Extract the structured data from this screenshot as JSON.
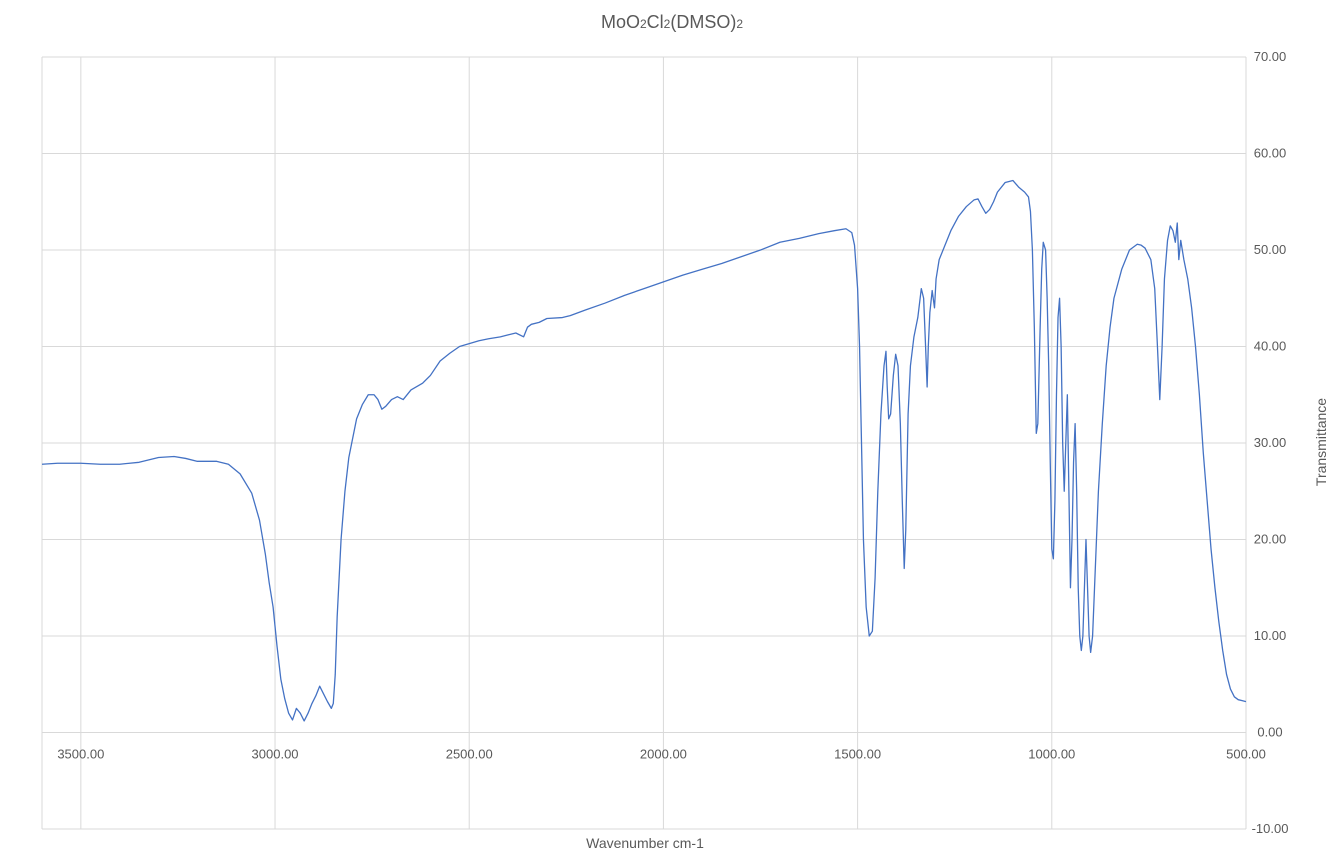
{
  "chart_data": {
    "type": "line",
    "title": {
      "parts": [
        {
          "text": "MoO",
          "sub": false
        },
        {
          "text": "2",
          "sub": true
        },
        {
          "text": "Cl",
          "sub": false
        },
        {
          "text": "2",
          "sub": true
        },
        {
          "text": "(DMSO)",
          "sub": false
        },
        {
          "text": "2",
          "sub": true
        }
      ]
    },
    "xlabel": "Wavenumber cm-1",
    "ylabel": "Transmittance",
    "xlim": [
      3600,
      500
    ],
    "ylim": [
      -10,
      70
    ],
    "x_reversed": true,
    "y_axis_position": "right",
    "grid": true,
    "line_color": "#4472c4",
    "grid_color": "#d9d9d9",
    "text_color": "#595959",
    "x_ticks": [
      3500,
      3000,
      2500,
      2000,
      1500,
      1000,
      500
    ],
    "x_tick_labels": [
      "3500.00",
      "3000.00",
      "2500.00",
      "2000.00",
      "1500.00",
      "1000.00",
      "500.00"
    ],
    "y_ticks": [
      70,
      60,
      50,
      40,
      30,
      20,
      10,
      0,
      -10
    ],
    "y_tick_labels": [
      "70.00",
      "60.00",
      "50.00",
      "40.00",
      "30.00",
      "20.00",
      "10.00",
      "0.00",
      "-10.00"
    ],
    "series": [
      {
        "points": [
          [
            3600,
            27.8
          ],
          [
            3560,
            27.9
          ],
          [
            3500,
            27.9
          ],
          [
            3450,
            27.8
          ],
          [
            3400,
            27.8
          ],
          [
            3350,
            28.0
          ],
          [
            3300,
            28.5
          ],
          [
            3260,
            28.6
          ],
          [
            3230,
            28.4
          ],
          [
            3200,
            28.1
          ],
          [
            3150,
            28.1
          ],
          [
            3120,
            27.8
          ],
          [
            3090,
            26.8
          ],
          [
            3060,
            24.8
          ],
          [
            3040,
            22.0
          ],
          [
            3025,
            18.5
          ],
          [
            3015,
            15.5
          ],
          [
            3005,
            13.0
          ],
          [
            2995,
            9.0
          ],
          [
            2985,
            5.5
          ],
          [
            2975,
            3.5
          ],
          [
            2965,
            2.0
          ],
          [
            2955,
            1.3
          ],
          [
            2945,
            2.5
          ],
          [
            2935,
            2.0
          ],
          [
            2925,
            1.2
          ],
          [
            2915,
            2.0
          ],
          [
            2905,
            3.0
          ],
          [
            2895,
            3.8
          ],
          [
            2885,
            4.8
          ],
          [
            2875,
            4.0
          ],
          [
            2865,
            3.2
          ],
          [
            2855,
            2.5
          ],
          [
            2850,
            3.0
          ],
          [
            2845,
            6.0
          ],
          [
            2840,
            12.0
          ],
          [
            2830,
            20.0
          ],
          [
            2820,
            25.0
          ],
          [
            2810,
            28.5
          ],
          [
            2800,
            30.5
          ],
          [
            2790,
            32.5
          ],
          [
            2775,
            34.0
          ],
          [
            2760,
            35.0
          ],
          [
            2745,
            35.0
          ],
          [
            2735,
            34.5
          ],
          [
            2725,
            33.5
          ],
          [
            2715,
            33.8
          ],
          [
            2700,
            34.5
          ],
          [
            2685,
            34.8
          ],
          [
            2670,
            34.5
          ],
          [
            2650,
            35.5
          ],
          [
            2620,
            36.2
          ],
          [
            2600,
            37.0
          ],
          [
            2575,
            38.5
          ],
          [
            2550,
            39.3
          ],
          [
            2525,
            40.0
          ],
          [
            2500,
            40.3
          ],
          [
            2475,
            40.6
          ],
          [
            2450,
            40.8
          ],
          [
            2420,
            41.0
          ],
          [
            2400,
            41.2
          ],
          [
            2380,
            41.4
          ],
          [
            2360,
            41.0
          ],
          [
            2350,
            42.0
          ],
          [
            2340,
            42.3
          ],
          [
            2320,
            42.5
          ],
          [
            2300,
            42.9
          ],
          [
            2260,
            43.0
          ],
          [
            2240,
            43.2
          ],
          [
            2200,
            43.8
          ],
          [
            2150,
            44.5
          ],
          [
            2100,
            45.3
          ],
          [
            2050,
            46.0
          ],
          [
            2000,
            46.7
          ],
          [
            1950,
            47.4
          ],
          [
            1900,
            48.0
          ],
          [
            1850,
            48.6
          ],
          [
            1800,
            49.3
          ],
          [
            1750,
            50.0
          ],
          [
            1700,
            50.8
          ],
          [
            1650,
            51.2
          ],
          [
            1600,
            51.7
          ],
          [
            1560,
            52.0
          ],
          [
            1530,
            52.2
          ],
          [
            1515,
            51.8
          ],
          [
            1508,
            50.5
          ],
          [
            1500,
            46.0
          ],
          [
            1495,
            40.0
          ],
          [
            1490,
            30.0
          ],
          [
            1485,
            20.0
          ],
          [
            1478,
            13.0
          ],
          [
            1470,
            10.0
          ],
          [
            1462,
            10.5
          ],
          [
            1455,
            16.0
          ],
          [
            1448,
            25.0
          ],
          [
            1440,
            33.0
          ],
          [
            1432,
            38.0
          ],
          [
            1427,
            39.5
          ],
          [
            1424,
            36.0
          ],
          [
            1420,
            32.5
          ],
          [
            1415,
            33.0
          ],
          [
            1408,
            37.0
          ],
          [
            1402,
            39.2
          ],
          [
            1396,
            38.0
          ],
          [
            1390,
            32.0
          ],
          [
            1385,
            24.0
          ],
          [
            1380,
            17.0
          ],
          [
            1376,
            21.0
          ],
          [
            1370,
            33.0
          ],
          [
            1364,
            38.0
          ],
          [
            1355,
            41.0
          ],
          [
            1345,
            43.0
          ],
          [
            1336,
            46.0
          ],
          [
            1330,
            45.0
          ],
          [
            1325,
            40.0
          ],
          [
            1321,
            35.8
          ],
          [
            1318,
            40.0
          ],
          [
            1314,
            43.5
          ],
          [
            1308,
            45.8
          ],
          [
            1302,
            44.0
          ],
          [
            1298,
            47.0
          ],
          [
            1290,
            49.0
          ],
          [
            1280,
            50.0
          ],
          [
            1270,
            51.0
          ],
          [
            1260,
            52.0
          ],
          [
            1240,
            53.5
          ],
          [
            1220,
            54.5
          ],
          [
            1200,
            55.2
          ],
          [
            1190,
            55.3
          ],
          [
            1180,
            54.5
          ],
          [
            1170,
            53.8
          ],
          [
            1160,
            54.2
          ],
          [
            1150,
            55.0
          ],
          [
            1140,
            56.0
          ],
          [
            1120,
            57.0
          ],
          [
            1100,
            57.2
          ],
          [
            1085,
            56.5
          ],
          [
            1070,
            56.0
          ],
          [
            1060,
            55.5
          ],
          [
            1055,
            54.0
          ],
          [
            1050,
            50.0
          ],
          [
            1045,
            42.0
          ],
          [
            1040,
            31.0
          ],
          [
            1036,
            32.0
          ],
          [
            1030,
            42.0
          ],
          [
            1026,
            48.0
          ],
          [
            1022,
            50.8
          ],
          [
            1016,
            50.0
          ],
          [
            1012,
            45.0
          ],
          [
            1008,
            38.0
          ],
          [
            1004,
            28.0
          ],
          [
            1000,
            19.0
          ],
          [
            996,
            18.0
          ],
          [
            992,
            24.0
          ],
          [
            988,
            35.0
          ],
          [
            984,
            43.0
          ],
          [
            980,
            45.0
          ],
          [
            976,
            40.0
          ],
          [
            972,
            30.0
          ],
          [
            968,
            25.0
          ],
          [
            964,
            30.0
          ],
          [
            960,
            35.0
          ],
          [
            956,
            25.0
          ],
          [
            952,
            15.0
          ],
          [
            948,
            20.0
          ],
          [
            944,
            28.0
          ],
          [
            940,
            32.0
          ],
          [
            936,
            25.0
          ],
          [
            932,
            15.0
          ],
          [
            928,
            10.0
          ],
          [
            924,
            8.5
          ],
          [
            920,
            10.0
          ],
          [
            916,
            15.0
          ],
          [
            912,
            20.0
          ],
          [
            908,
            15.0
          ],
          [
            904,
            10.0
          ],
          [
            900,
            8.3
          ],
          [
            895,
            10.0
          ],
          [
            890,
            15.0
          ],
          [
            880,
            25.0
          ],
          [
            870,
            32.0
          ],
          [
            860,
            38.0
          ],
          [
            850,
            42.0
          ],
          [
            840,
            45.0
          ],
          [
            820,
            48.0
          ],
          [
            800,
            50.0
          ],
          [
            780,
            50.6
          ],
          [
            770,
            50.5
          ],
          [
            760,
            50.2
          ],
          [
            745,
            49.0
          ],
          [
            735,
            46.0
          ],
          [
            728,
            40.0
          ],
          [
            722,
            34.5
          ],
          [
            716,
            40.0
          ],
          [
            710,
            47.0
          ],
          [
            702,
            51.0
          ],
          [
            695,
            52.5
          ],
          [
            688,
            52.0
          ],
          [
            682,
            50.8
          ],
          [
            677,
            52.8
          ],
          [
            673,
            49.0
          ],
          [
            668,
            51.0
          ],
          [
            660,
            49.0
          ],
          [
            650,
            47.0
          ],
          [
            640,
            44.0
          ],
          [
            630,
            40.0
          ],
          [
            620,
            35.0
          ],
          [
            610,
            29.0
          ],
          [
            600,
            24.0
          ],
          [
            590,
            19.0
          ],
          [
            580,
            15.0
          ],
          [
            570,
            11.5
          ],
          [
            560,
            8.5
          ],
          [
            550,
            6.0
          ],
          [
            540,
            4.5
          ],
          [
            530,
            3.7
          ],
          [
            520,
            3.4
          ],
          [
            510,
            3.3
          ],
          [
            500,
            3.2
          ]
        ]
      }
    ]
  }
}
